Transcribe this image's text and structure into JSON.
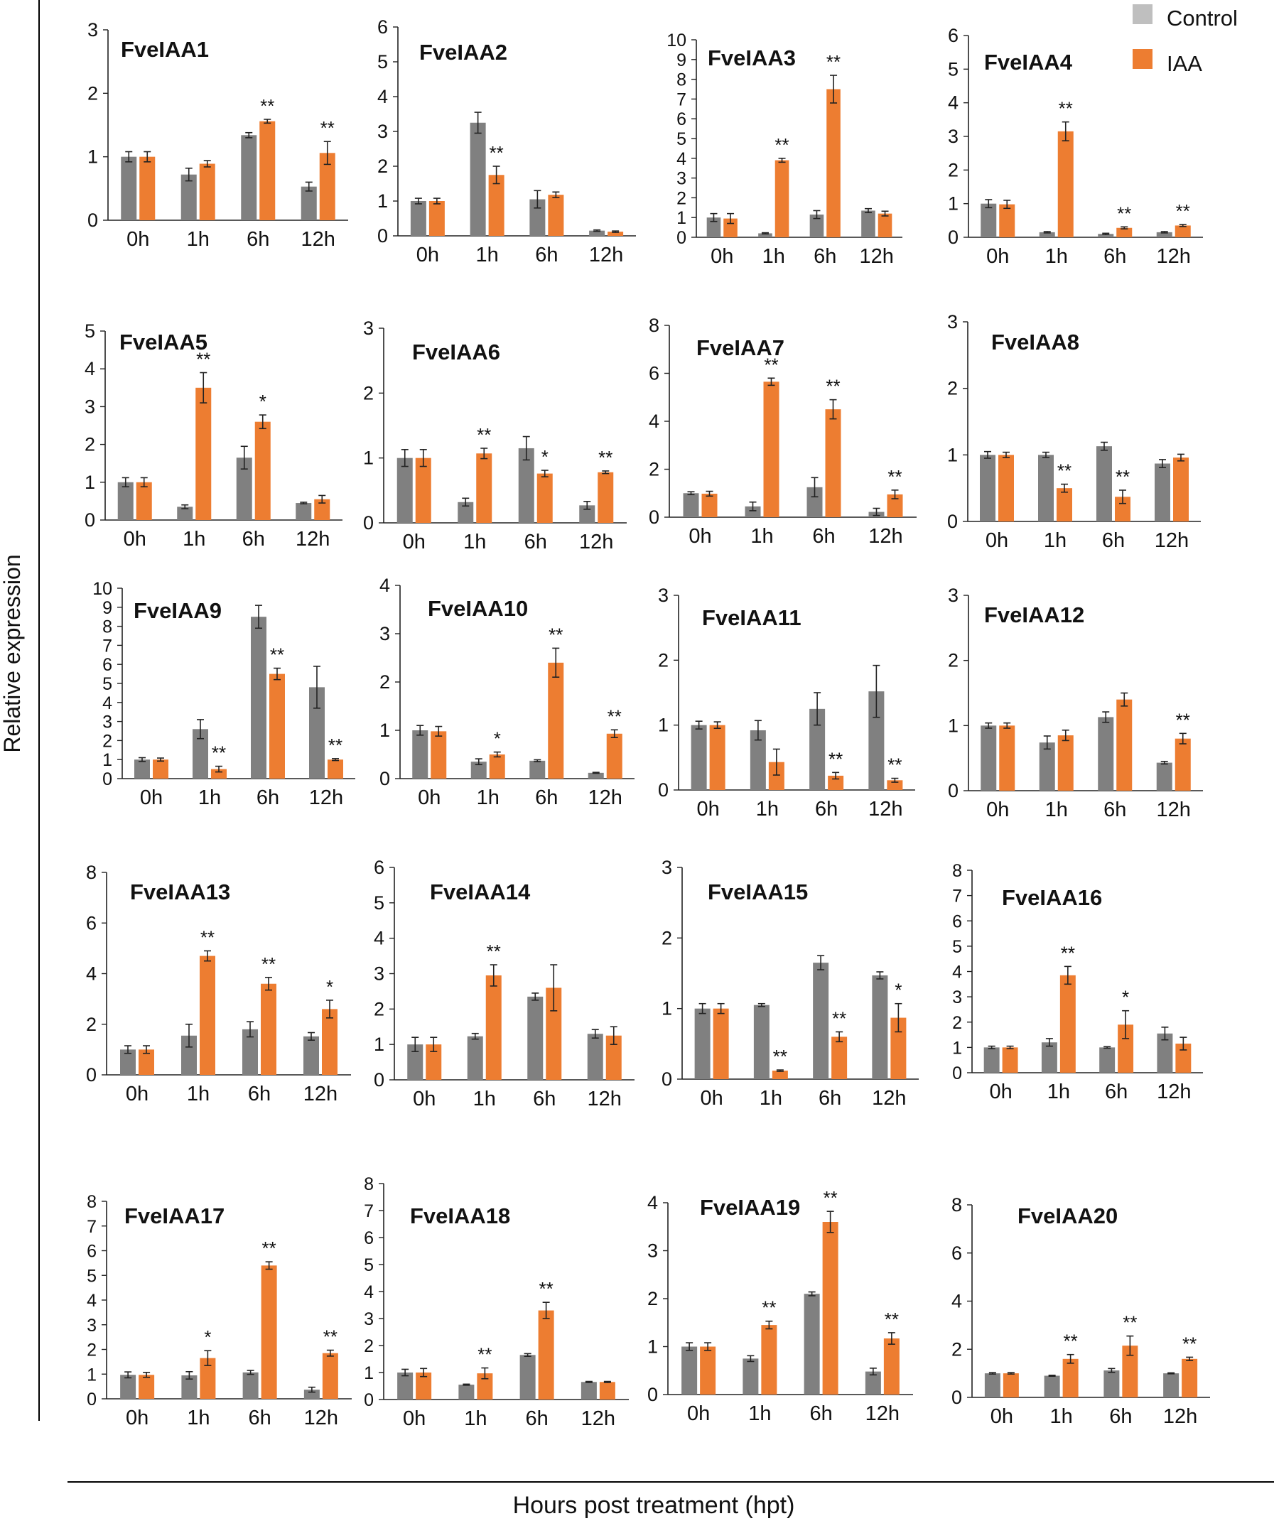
{
  "figure": {
    "ylabel": "Relative expression",
    "xlabel": "Hours post treatment (hpt)",
    "legend": [
      {
        "label": "Control",
        "color": "#bfbfbf"
      },
      {
        "label": "IAA",
        "color": "#ed7d31"
      }
    ],
    "colors": {
      "control_bar": "#808080",
      "iaa_bar": "#ed7d31",
      "legend_control": "#bfbfbf"
    }
  },
  "chart_data": [
    {
      "type": "bar",
      "title": "FveIAA1",
      "categories": [
        "0h",
        "1h",
        "6h",
        "12h"
      ],
      "ylim": [
        0,
        3
      ],
      "yticks": [
        0,
        1,
        2,
        3
      ],
      "series": [
        {
          "name": "Control",
          "values": [
            1.0,
            0.72,
            1.34,
            0.53
          ],
          "errors": [
            0.08,
            0.1,
            0.04,
            0.07
          ]
        },
        {
          "name": "IAA",
          "values": [
            1.0,
            0.89,
            1.56,
            1.06
          ],
          "errors": [
            0.08,
            0.05,
            0.03,
            0.18
          ]
        }
      ],
      "annotations": [
        "",
        "",
        "**",
        "**"
      ]
    },
    {
      "type": "bar",
      "title": "FveIAA2",
      "categories": [
        "0h",
        "1h",
        "6h",
        "12h"
      ],
      "ylim": [
        0,
        6
      ],
      "yticks": [
        0,
        1,
        2,
        3,
        4,
        5,
        6
      ],
      "series": [
        {
          "name": "Control",
          "values": [
            1.0,
            3.25,
            1.05,
            0.15
          ],
          "errors": [
            0.08,
            0.3,
            0.25,
            0.02
          ]
        },
        {
          "name": "IAA",
          "values": [
            1.0,
            1.75,
            1.18,
            0.12
          ],
          "errors": [
            0.08,
            0.25,
            0.08,
            0.02
          ]
        }
      ],
      "annotations": [
        "",
        "**",
        "",
        ""
      ]
    },
    {
      "type": "bar",
      "title": "FveIAA3",
      "categories": [
        "0h",
        "1h",
        "6h",
        "12h"
      ],
      "ylim": [
        0,
        10
      ],
      "yticks": [
        0,
        1,
        2,
        3,
        4,
        5,
        6,
        7,
        8,
        9,
        10
      ],
      "series": [
        {
          "name": "Control",
          "values": [
            1.0,
            0.2,
            1.15,
            1.35
          ],
          "errors": [
            0.2,
            0.03,
            0.2,
            0.1
          ]
        },
        {
          "name": "IAA",
          "values": [
            0.95,
            3.9,
            7.5,
            1.2
          ],
          "errors": [
            0.25,
            0.1,
            0.7,
            0.12
          ]
        }
      ],
      "annotations": [
        "",
        "**",
        "**",
        ""
      ]
    },
    {
      "type": "bar",
      "title": "FveIAA4",
      "categories": [
        "0h",
        "1h",
        "6h",
        "12h"
      ],
      "ylim": [
        0,
        6
      ],
      "yticks": [
        0,
        1,
        2,
        3,
        4,
        5,
        6
      ],
      "series": [
        {
          "name": "Control",
          "values": [
            1.0,
            0.15,
            0.1,
            0.15
          ],
          "errors": [
            0.12,
            0.02,
            0.02,
            0.02
          ]
        },
        {
          "name": "IAA",
          "values": [
            0.98,
            3.15,
            0.28,
            0.35
          ],
          "errors": [
            0.12,
            0.28,
            0.03,
            0.03
          ]
        }
      ],
      "annotations": [
        "",
        "**",
        "**",
        "**"
      ]
    },
    {
      "type": "bar",
      "title": "FveIAA5",
      "categories": [
        "0h",
        "1h",
        "6h",
        "12h"
      ],
      "ylim": [
        0,
        5
      ],
      "yticks": [
        0,
        1,
        2,
        3,
        4,
        5
      ],
      "series": [
        {
          "name": "Control",
          "values": [
            1.0,
            0.35,
            1.65,
            0.45
          ],
          "errors": [
            0.12,
            0.05,
            0.3,
            0.02
          ]
        },
        {
          "name": "IAA",
          "values": [
            1.0,
            3.5,
            2.6,
            0.55
          ],
          "errors": [
            0.12,
            0.4,
            0.18,
            0.1
          ]
        }
      ],
      "annotations": [
        "",
        "**",
        "*",
        ""
      ]
    },
    {
      "type": "bar",
      "title": "FveIAA6",
      "categories": [
        "0h",
        "1h",
        "6h",
        "12h"
      ],
      "ylim": [
        0,
        3
      ],
      "yticks": [
        0,
        1,
        2,
        3
      ],
      "series": [
        {
          "name": "Control",
          "values": [
            1.0,
            0.32,
            1.15,
            0.27
          ],
          "errors": [
            0.13,
            0.06,
            0.18,
            0.06
          ]
        },
        {
          "name": "IAA",
          "values": [
            1.0,
            1.07,
            0.76,
            0.78
          ],
          "errors": [
            0.13,
            0.08,
            0.05,
            0.02
          ]
        }
      ],
      "annotations": [
        "",
        "**",
        "*",
        "**"
      ]
    },
    {
      "type": "bar",
      "title": "FveIAA7",
      "categories": [
        "0h",
        "1h",
        "6h",
        "12h"
      ],
      "ylim": [
        0,
        8
      ],
      "yticks": [
        0,
        2,
        4,
        6,
        8
      ],
      "series": [
        {
          "name": "Control",
          "values": [
            1.0,
            0.45,
            1.25,
            0.22
          ],
          "errors": [
            0.06,
            0.18,
            0.4,
            0.15
          ]
        },
        {
          "name": "IAA",
          "values": [
            0.98,
            5.65,
            4.5,
            0.95
          ],
          "errors": [
            0.1,
            0.15,
            0.4,
            0.18
          ]
        }
      ],
      "annotations": [
        "",
        "**",
        "**",
        "**"
      ]
    },
    {
      "type": "bar",
      "title": "FveIAA8",
      "categories": [
        "0h",
        "1h",
        "6h",
        "12h"
      ],
      "ylim": [
        0,
        3
      ],
      "yticks": [
        0,
        1,
        2,
        3
      ],
      "series": [
        {
          "name": "Control",
          "values": [
            1.0,
            1.0,
            1.13,
            0.87
          ],
          "errors": [
            0.05,
            0.04,
            0.06,
            0.06
          ]
        },
        {
          "name": "IAA",
          "values": [
            1.0,
            0.5,
            0.37,
            0.96
          ],
          "errors": [
            0.04,
            0.06,
            0.1,
            0.05
          ]
        }
      ],
      "annotations": [
        "",
        "**",
        "**",
        ""
      ]
    },
    {
      "type": "bar",
      "title": "FveIAA9",
      "categories": [
        "0h",
        "1h",
        "6h",
        "12h"
      ],
      "ylim": [
        0,
        10
      ],
      "yticks": [
        0,
        1,
        2,
        3,
        4,
        5,
        6,
        7,
        8,
        9,
        10
      ],
      "series": [
        {
          "name": "Control",
          "values": [
            1.0,
            2.6,
            8.5,
            4.8
          ],
          "errors": [
            0.1,
            0.5,
            0.6,
            1.1
          ]
        },
        {
          "name": "IAA",
          "values": [
            1.0,
            0.5,
            5.5,
            1.0
          ],
          "errors": [
            0.08,
            0.15,
            0.3,
            0.05
          ]
        }
      ],
      "annotations": [
        "",
        "**",
        "**",
        "**"
      ]
    },
    {
      "type": "bar",
      "title": "FveIAA10",
      "categories": [
        "0h",
        "1h",
        "6h",
        "12h"
      ],
      "ylim": [
        0,
        4
      ],
      "yticks": [
        0,
        1,
        2,
        3,
        4
      ],
      "series": [
        {
          "name": "Control",
          "values": [
            1.0,
            0.35,
            0.37,
            0.12
          ],
          "errors": [
            0.1,
            0.06,
            0.02,
            0.01
          ]
        },
        {
          "name": "IAA",
          "values": [
            0.98,
            0.5,
            2.4,
            0.93
          ],
          "errors": [
            0.1,
            0.05,
            0.3,
            0.08
          ]
        }
      ],
      "annotations": [
        "",
        "*",
        "**",
        "**"
      ]
    },
    {
      "type": "bar",
      "title": "FveIAA11",
      "categories": [
        "0h",
        "1h",
        "6h",
        "12h"
      ],
      "ylim": [
        0,
        3
      ],
      "yticks": [
        0,
        1,
        2,
        3
      ],
      "series": [
        {
          "name": "Control",
          "values": [
            1.0,
            0.92,
            1.25,
            1.52
          ],
          "errors": [
            0.06,
            0.15,
            0.25,
            0.4
          ]
        },
        {
          "name": "IAA",
          "values": [
            1.0,
            0.43,
            0.22,
            0.15
          ],
          "errors": [
            0.05,
            0.2,
            0.05,
            0.03
          ]
        }
      ],
      "annotations": [
        "",
        "",
        "**",
        "**"
      ]
    },
    {
      "type": "bar",
      "title": "FveIAA12",
      "categories": [
        "0h",
        "1h",
        "6h",
        "12h"
      ],
      "ylim": [
        0,
        3
      ],
      "yticks": [
        0,
        1,
        2,
        3
      ],
      "series": [
        {
          "name": "Control",
          "values": [
            1.0,
            0.74,
            1.13,
            0.43
          ],
          "errors": [
            0.04,
            0.1,
            0.08,
            0.02
          ]
        },
        {
          "name": "IAA",
          "values": [
            1.0,
            0.85,
            1.4,
            0.8
          ],
          "errors": [
            0.04,
            0.08,
            0.1,
            0.08
          ]
        }
      ],
      "annotations": [
        "",
        "",
        "",
        "**"
      ]
    },
    {
      "type": "bar",
      "title": "FveIAA13",
      "categories": [
        "0h",
        "1h",
        "6h",
        "12h"
      ],
      "ylim": [
        0,
        8
      ],
      "yticks": [
        0,
        2,
        4,
        6,
        8
      ],
      "series": [
        {
          "name": "Control",
          "values": [
            1.0,
            1.55,
            1.8,
            1.52
          ],
          "errors": [
            0.15,
            0.45,
            0.3,
            0.15
          ]
        },
        {
          "name": "IAA",
          "values": [
            1.0,
            4.7,
            3.6,
            2.6
          ],
          "errors": [
            0.15,
            0.2,
            0.25,
            0.35
          ]
        }
      ],
      "annotations": [
        "",
        "**",
        "**",
        "*"
      ]
    },
    {
      "type": "bar",
      "title": "FveIAA14",
      "categories": [
        "0h",
        "1h",
        "6h",
        "12h"
      ],
      "ylim": [
        0,
        6
      ],
      "yticks": [
        0,
        1,
        2,
        3,
        4,
        5,
        6
      ],
      "series": [
        {
          "name": "Control",
          "values": [
            1.0,
            1.23,
            2.35,
            1.3
          ],
          "errors": [
            0.2,
            0.08,
            0.1,
            0.12
          ]
        },
        {
          "name": "IAA",
          "values": [
            1.0,
            2.95,
            2.6,
            1.25
          ],
          "errors": [
            0.2,
            0.3,
            0.65,
            0.25
          ]
        }
      ],
      "annotations": [
        "",
        "**",
        "",
        ""
      ]
    },
    {
      "type": "bar",
      "title": "FveIAA15",
      "categories": [
        "0h",
        "1h",
        "6h",
        "12h"
      ],
      "ylim": [
        0,
        3
      ],
      "yticks": [
        0,
        1,
        2,
        3
      ],
      "series": [
        {
          "name": "Control",
          "values": [
            1.0,
            1.05,
            1.65,
            1.47
          ],
          "errors": [
            0.07,
            0.02,
            0.1,
            0.05
          ]
        },
        {
          "name": "IAA",
          "values": [
            1.0,
            0.12,
            0.6,
            0.87
          ],
          "errors": [
            0.07,
            0.01,
            0.07,
            0.2
          ]
        }
      ],
      "annotations": [
        "",
        "**",
        "**",
        "*"
      ]
    },
    {
      "type": "bar",
      "title": "FveIAA16",
      "categories": [
        "0h",
        "1h",
        "6h",
        "12h"
      ],
      "ylim": [
        0,
        8
      ],
      "yticks": [
        0,
        1,
        2,
        3,
        4,
        5,
        6,
        7,
        8
      ],
      "series": [
        {
          "name": "Control",
          "values": [
            1.0,
            1.2,
            1.0,
            1.55
          ],
          "errors": [
            0.05,
            0.15,
            0.03,
            0.25
          ]
        },
        {
          "name": "IAA",
          "values": [
            1.0,
            3.85,
            1.9,
            1.15
          ],
          "errors": [
            0.05,
            0.35,
            0.55,
            0.25
          ]
        }
      ],
      "annotations": [
        "",
        "**",
        "*",
        ""
      ]
    },
    {
      "type": "bar",
      "title": "FveIAA17",
      "categories": [
        "0h",
        "1h",
        "6h",
        "12h"
      ],
      "ylim": [
        0,
        8
      ],
      "yticks": [
        0,
        1,
        2,
        3,
        4,
        5,
        6,
        7,
        8
      ],
      "series": [
        {
          "name": "Control",
          "values": [
            0.97,
            0.95,
            1.07,
            0.37
          ],
          "errors": [
            0.12,
            0.15,
            0.08,
            0.1
          ]
        },
        {
          "name": "IAA",
          "values": [
            0.97,
            1.65,
            5.4,
            1.85
          ],
          "errors": [
            0.1,
            0.3,
            0.15,
            0.12
          ]
        }
      ],
      "annotations": [
        "",
        "*",
        "**",
        "**"
      ]
    },
    {
      "type": "bar",
      "title": "FveIAA18",
      "categories": [
        "0h",
        "1h",
        "6h",
        "12h"
      ],
      "ylim": [
        0,
        8
      ],
      "yticks": [
        0,
        1,
        2,
        3,
        4,
        5,
        6,
        7,
        8
      ],
      "series": [
        {
          "name": "Control",
          "values": [
            1.0,
            0.55,
            1.65,
            0.65
          ],
          "errors": [
            0.12,
            0.02,
            0.05,
            0.02
          ]
        },
        {
          "name": "IAA",
          "values": [
            1.0,
            0.97,
            3.3,
            0.65
          ],
          "errors": [
            0.15,
            0.2,
            0.3,
            0.02
          ]
        }
      ],
      "annotations": [
        "",
        "**",
        "**",
        ""
      ]
    },
    {
      "type": "bar",
      "title": "FveIAA19",
      "categories": [
        "0h",
        "1h",
        "6h",
        "12h"
      ],
      "ylim": [
        0,
        4
      ],
      "yticks": [
        0,
        1,
        2,
        3,
        4
      ],
      "series": [
        {
          "name": "Control",
          "values": [
            1.0,
            0.75,
            2.1,
            0.48
          ],
          "errors": [
            0.08,
            0.06,
            0.04,
            0.07
          ]
        },
        {
          "name": "IAA",
          "values": [
            1.0,
            1.45,
            3.6,
            1.17
          ],
          "errors": [
            0.08,
            0.08,
            0.22,
            0.12
          ]
        }
      ],
      "annotations": [
        "",
        "**",
        "**",
        "**"
      ]
    },
    {
      "type": "bar",
      "title": "FveIAA20",
      "categories": [
        "0h",
        "1h",
        "6h",
        "12h"
      ],
      "ylim": [
        0,
        8
      ],
      "yticks": [
        0,
        2,
        4,
        6,
        8
      ],
      "series": [
        {
          "name": "Control",
          "values": [
            1.0,
            0.9,
            1.12,
            1.0
          ],
          "errors": [
            0.03,
            0.02,
            0.08,
            0.02
          ]
        },
        {
          "name": "IAA",
          "values": [
            1.0,
            1.6,
            2.15,
            1.6
          ],
          "errors": [
            0.03,
            0.18,
            0.4,
            0.07
          ]
        }
      ],
      "annotations": [
        "",
        "**",
        "**",
        "**"
      ]
    }
  ]
}
